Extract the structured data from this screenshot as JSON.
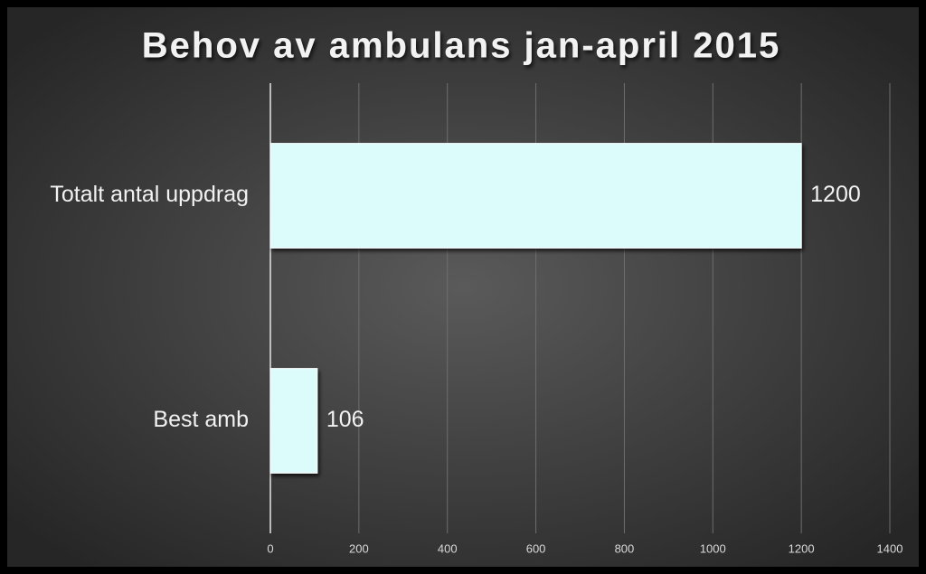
{
  "chart_data": {
    "type": "bar",
    "horizontal": true,
    "title": "Behov av ambulans jan-april 2015",
    "categories": [
      "Totalt antal uppdrag",
      "Best amb"
    ],
    "values": [
      1200,
      106
    ],
    "color": "#dcfcfc",
    "xlim": [
      0,
      1400
    ],
    "xticks": [
      0,
      200,
      400,
      600,
      800,
      1000,
      1200,
      1400
    ],
    "grid": true
  }
}
